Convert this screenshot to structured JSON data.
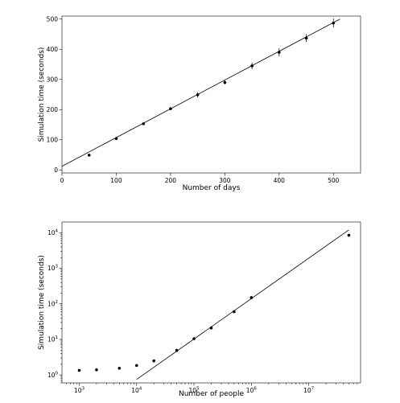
{
  "chart_data": [
    {
      "type": "scatter",
      "xlabel": "Number of days",
      "ylabel": "Simulation time (seconds)",
      "xlim": [
        0,
        550
      ],
      "ylim": [
        -10,
        510
      ],
      "xticks": [
        0,
        100,
        200,
        300,
        400,
        500
      ],
      "xtick_labels": [
        "0",
        "100",
        "200",
        "300",
        "400",
        "500"
      ],
      "yticks": [
        0,
        100,
        200,
        300,
        400,
        500
      ],
      "ytick_labels": [
        "0",
        "100",
        "200",
        "300",
        "400",
        "500"
      ],
      "grid": false,
      "series": [
        {
          "marker": "point",
          "x": [
            50,
            100,
            150,
            200,
            250,
            300,
            350,
            400,
            450,
            500
          ],
          "y": [
            49,
            104,
            153,
            203,
            249,
            290,
            345,
            390,
            437,
            487
          ],
          "yerr": [
            3,
            3,
            3,
            5,
            9,
            6,
            11,
            14,
            13,
            15
          ]
        },
        {
          "type": "line",
          "x": [
            0,
            512
          ],
          "y": [
            12,
            500
          ]
        }
      ]
    },
    {
      "type": "scatter",
      "xlabel": "Number of people",
      "ylabel": "Simulation time (seconds)",
      "xscale": "log",
      "yscale": "log",
      "xlim": [
        500,
        80000000
      ],
      "ylim": [
        0.6,
        20000
      ],
      "xticks": [
        1000,
        10000,
        100000,
        1000000,
        10000000
      ],
      "xtick_labels": [
        {
          "base": "10",
          "exp": "3"
        },
        {
          "base": "10",
          "exp": "4"
        },
        {
          "base": "10",
          "exp": "5"
        },
        {
          "base": "10",
          "exp": "6"
        },
        {
          "base": "10",
          "exp": "7"
        }
      ],
      "yticks": [
        1,
        10,
        100,
        1000,
        10000
      ],
      "ytick_labels": [
        {
          "base": "10",
          "exp": "0"
        },
        {
          "base": "10",
          "exp": "1"
        },
        {
          "base": "10",
          "exp": "2"
        },
        {
          "base": "10",
          "exp": "3"
        },
        {
          "base": "10",
          "exp": "4"
        }
      ],
      "grid": false,
      "series": [
        {
          "marker": "point",
          "x": [
            1000,
            2000,
            5000,
            10000,
            20000,
            50000,
            100000,
            200000,
            500000,
            1000000,
            50000000
          ],
          "y": [
            1.35,
            1.4,
            1.55,
            1.85,
            2.5,
            4.9,
            10.5,
            21,
            60,
            150,
            8500
          ]
        },
        {
          "type": "line",
          "x": [
            10000,
            50000000
          ],
          "y": [
            0.75,
            12000
          ]
        }
      ]
    }
  ]
}
